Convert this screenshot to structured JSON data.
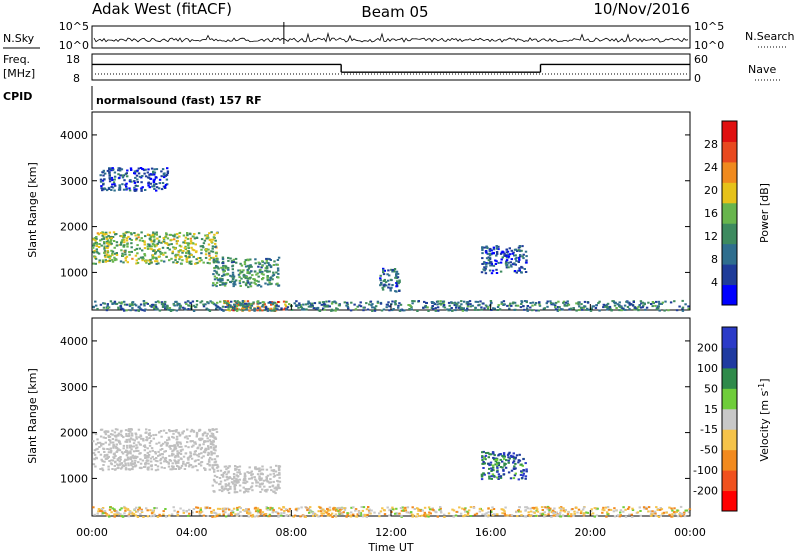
{
  "header": {
    "station": "Adak West (fitACF)",
    "beam": "Beam 05",
    "date": "10/Nov/2016"
  },
  "panel_labels": {
    "nsky": "N.Sky",
    "nsky_ticks": [
      "10^5",
      "10^0"
    ],
    "nsearch": "N.Search",
    "nsearch_ticks": [
      "10^5",
      "10^0"
    ],
    "freq": "Freq.",
    "freq_unit": "[MHz]",
    "freq_ticks": [
      "18",
      "8"
    ],
    "nave": "Nave",
    "nave_ticks": [
      "60",
      "0"
    ],
    "cpid": "CPID",
    "cpid_text": "normalsound (fast) 157 RF"
  },
  "colors": {
    "power_scale": [
      "#0000ff",
      "#1f3c99",
      "#2f6e8e",
      "#3d8a5f",
      "#68b54d",
      "#e6c21a",
      "#f08a1e",
      "#e8491f",
      "#e01010"
    ],
    "velocity_scale": [
      "#ff0000",
      "#f0511e",
      "#f28a1e",
      "#f5c34a",
      "#c8c8c8",
      "#6fcd3a",
      "#2f8a4a",
      "#1f3aa0",
      "#2b3bc8"
    ],
    "ground_scatter": "#bfbfbf"
  },
  "chart_data": [
    {
      "type": "heatmap",
      "name": "power",
      "ylabel": "Slant Range [km]",
      "xlabel": "",
      "yticks": [
        "1000",
        "2000",
        "3000",
        "4000"
      ],
      "ylim": [
        180,
        4500
      ],
      "colorbar": {
        "label": "Power [dB]",
        "ticks": [
          "4",
          "8",
          "12",
          "16",
          "20",
          "24",
          "28"
        ],
        "range": [
          0,
          32
        ]
      },
      "regions": [
        {
          "t": [
            0.0,
            5.0
          ],
          "r": [
            1200,
            1900
          ],
          "v": 16
        },
        {
          "t": [
            0.3,
            3.0
          ],
          "r": [
            2800,
            3300
          ],
          "v": 6
        },
        {
          "t": [
            4.8,
            7.5
          ],
          "r": [
            700,
            1350
          ],
          "v": 12
        },
        {
          "t": [
            5.2,
            7.8
          ],
          "r": [
            180,
            400
          ],
          "v": 24
        },
        {
          "t": [
            11.5,
            12.3
          ],
          "r": [
            600,
            1100
          ],
          "v": 8
        },
        {
          "t": [
            15.6,
            17.4
          ],
          "r": [
            1000,
            1600
          ],
          "v": 6
        },
        {
          "t": [
            0.0,
            24.0
          ],
          "r": [
            180,
            400
          ],
          "v": 10
        }
      ]
    },
    {
      "type": "heatmap",
      "name": "velocity",
      "ylabel": "Slant Range [km]",
      "xlabel": "Time UT",
      "xticks": [
        "00:00",
        "04:00",
        "08:00",
        "12:00",
        "16:00",
        "20:00",
        "00:00"
      ],
      "yticks": [
        "1000",
        "2000",
        "3000",
        "4000"
      ],
      "ylim": [
        180,
        4500
      ],
      "colorbar": {
        "label": "Velocity [m s",
        "label_sup": "-1",
        "label_end": "]",
        "ticks": [
          "-200",
          "-100",
          "-50",
          "-15",
          "15",
          "50",
          "100",
          "200"
        ],
        "range": [
          -250,
          250
        ]
      },
      "regions": [
        {
          "t": [
            0.0,
            5.0
          ],
          "r": [
            1200,
            2100
          ],
          "v": 0,
          "gs": true
        },
        {
          "t": [
            4.8,
            7.5
          ],
          "r": [
            700,
            1300
          ],
          "v": 0,
          "gs": true
        },
        {
          "t": [
            15.6,
            17.4
          ],
          "r": [
            1000,
            1600
          ],
          "v": 150
        },
        {
          "t": [
            0.0,
            24.0
          ],
          "r": [
            180,
            400
          ],
          "v": -40
        }
      ]
    }
  ],
  "frequency_timeline_mhz": [
    {
      "t": [
        0,
        10
      ],
      "f": 14
    },
    {
      "t": [
        10,
        18
      ],
      "f": 11
    },
    {
      "t": [
        18,
        24
      ],
      "f": 14
    }
  ]
}
